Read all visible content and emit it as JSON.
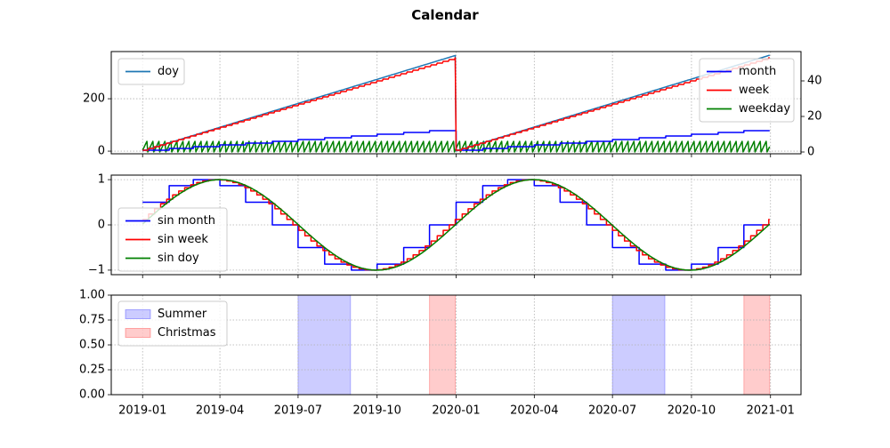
{
  "title": "Calendar",
  "chart_data": [
    {
      "type": "line",
      "panel": "top",
      "x_range": [
        "2019-01-01",
        "2020-12-31"
      ],
      "left_axis": {
        "ylim": [
          -10,
          380
        ],
        "ticks": [
          0,
          200
        ]
      },
      "right_axis": {
        "ylim": [
          -1,
          56.5
        ],
        "ticks": [
          0,
          20,
          40
        ]
      },
      "grid": true,
      "legend_left": {
        "placement": "upper-left",
        "entries": [
          {
            "name": "doy",
            "color": "#1f77b4"
          }
        ]
      },
      "legend_right": {
        "placement": "upper-right",
        "entries": [
          {
            "name": "month",
            "color": "#0000ff"
          },
          {
            "name": "week",
            "color": "#ff0000"
          },
          {
            "name": "weekday",
            "color": "#008000"
          }
        ]
      },
      "series": [
        {
          "name": "doy",
          "axis": "left",
          "color": "#1f77b4",
          "description": "day of year 1-366, resets each January"
        },
        {
          "name": "month",
          "axis": "right",
          "color": "#0000ff",
          "step": true,
          "values_per_year": [
            1,
            2,
            3,
            4,
            5,
            6,
            7,
            8,
            9,
            10,
            11,
            12
          ]
        },
        {
          "name": "week",
          "axis": "right",
          "color": "#ff0000",
          "range_per_year": [
            1,
            53
          ]
        },
        {
          "name": "weekday",
          "axis": "right",
          "color": "#008000",
          "range": [
            0,
            6
          ]
        }
      ]
    },
    {
      "type": "line",
      "panel": "middle",
      "x_range": [
        "2019-01-01",
        "2020-12-31"
      ],
      "ylim": [
        -1.1,
        1.1
      ],
      "ticks": [
        -1,
        0,
        1
      ],
      "grid": true,
      "legend": {
        "placement": "center-left",
        "entries": [
          {
            "name": "sin month",
            "color": "#0000ff"
          },
          {
            "name": "sin week",
            "color": "#ff0000"
          },
          {
            "name": "sin doy",
            "color": "#008000"
          }
        ]
      },
      "series": [
        {
          "name": "sin month",
          "color": "#0000ff",
          "formula": "sin(2*pi*month/12)"
        },
        {
          "name": "sin week",
          "color": "#ff0000",
          "formula": "sin(2*pi*week/52)"
        },
        {
          "name": "sin doy",
          "color": "#008000",
          "formula": "sin(2*pi*doy/365)"
        }
      ]
    },
    {
      "type": "area",
      "panel": "bottom",
      "x_range": [
        "2019-01-01",
        "2020-12-31"
      ],
      "ylim": [
        0,
        1
      ],
      "ticks": [
        "0.00",
        "0.25",
        "0.50",
        "0.75",
        "1.00"
      ],
      "x_ticks": [
        "2019-01",
        "2019-04",
        "2019-07",
        "2019-10",
        "2020-01",
        "2020-04",
        "2020-07",
        "2020-10",
        "2021-01"
      ],
      "grid": true,
      "legend": {
        "placement": "upper-left",
        "entries": [
          {
            "name": "Summer",
            "color": "#0000ff"
          },
          {
            "name": "Christmas",
            "color": "#ff0000"
          }
        ]
      },
      "spans": [
        {
          "name": "Summer",
          "start": "2019-07-01",
          "end": "2019-08-31",
          "color": "#0000ff"
        },
        {
          "name": "Christmas",
          "start": "2019-12-01",
          "end": "2019-12-31",
          "color": "#ff0000"
        },
        {
          "name": "Summer",
          "start": "2020-07-01",
          "end": "2020-08-31",
          "color": "#0000ff"
        },
        {
          "name": "Christmas",
          "start": "2020-12-01",
          "end": "2020-12-31",
          "color": "#ff0000"
        }
      ]
    }
  ]
}
